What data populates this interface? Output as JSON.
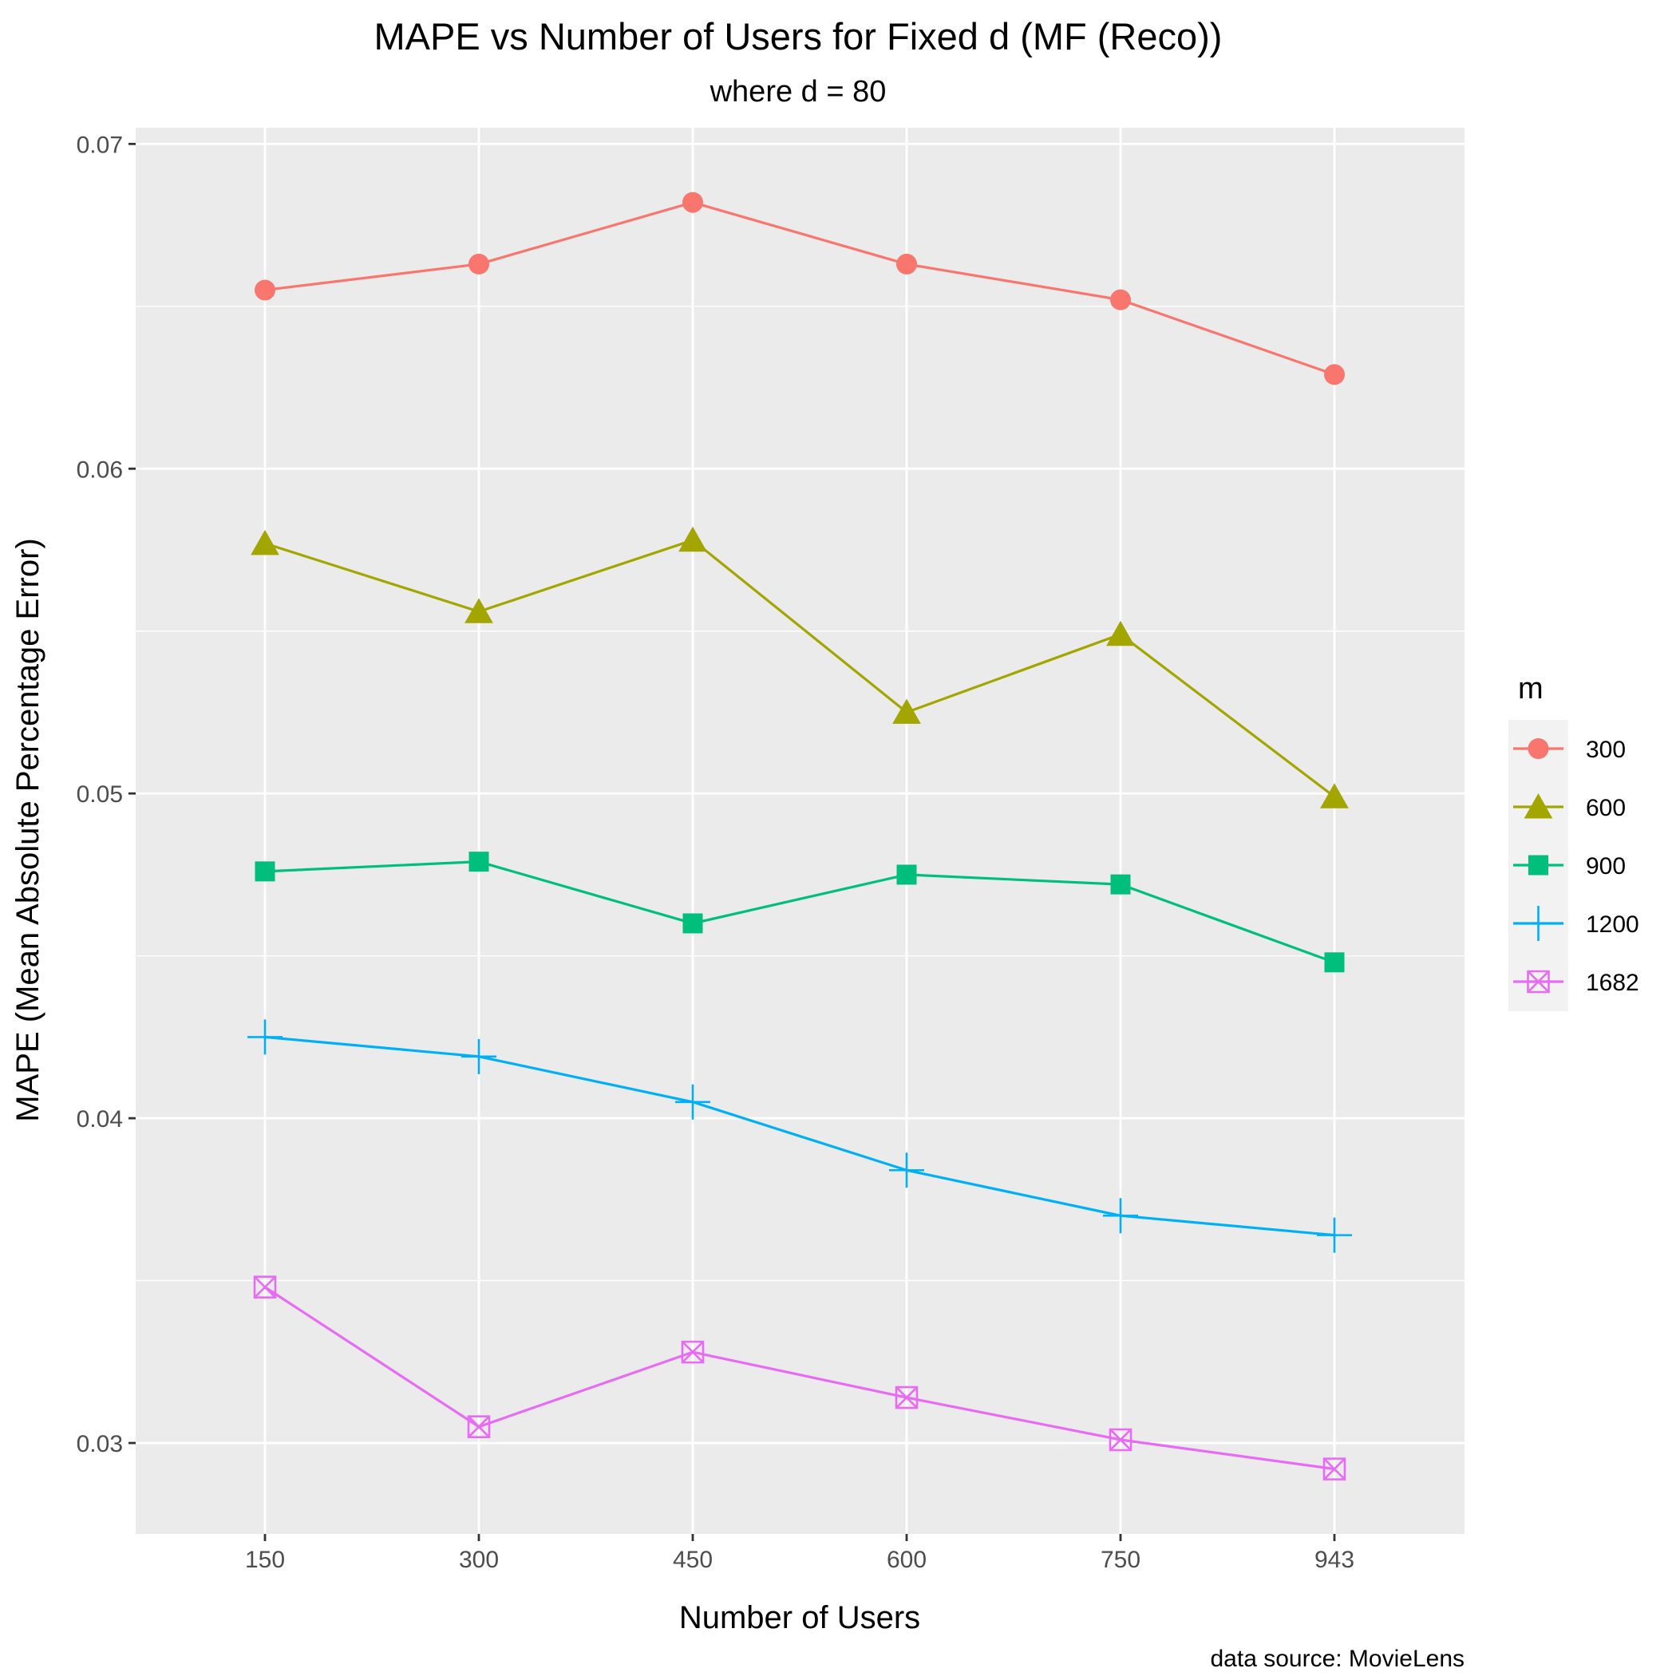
{
  "chart_data": {
    "type": "line",
    "title": "MAPE vs Number of Users for Fixed d (MF (Reco))",
    "subtitle": "where d = 80",
    "xlabel": "Number of Users",
    "ylabel": "MAPE (Mean Absolute Percentage Error)",
    "caption": "data source: MovieLens",
    "categories": [
      "150",
      "300",
      "450",
      "600",
      "750",
      "943"
    ],
    "y_ticks": [
      "0.03",
      "0.04",
      "0.05",
      "0.06",
      "0.07"
    ],
    "y_tick_values": [
      0.03,
      0.04,
      0.05,
      0.06,
      0.07
    ],
    "ylim": [
      0.0272,
      0.0705
    ],
    "grid": true,
    "legend": {
      "title": "m",
      "position": "right"
    },
    "series": [
      {
        "name": "300",
        "shape": "circle",
        "color": "#F8766D",
        "values": [
          0.0655,
          0.0663,
          0.0682,
          0.0663,
          0.0652,
          0.0629
        ]
      },
      {
        "name": "600",
        "shape": "triangle",
        "color": "#A3A500",
        "values": [
          0.0577,
          0.0556,
          0.0578,
          0.0525,
          0.0549,
          0.0499
        ]
      },
      {
        "name": "900",
        "shape": "square",
        "color": "#00BF7D",
        "values": [
          0.0476,
          0.0479,
          0.046,
          0.0475,
          0.0472,
          0.0448
        ]
      },
      {
        "name": "1200",
        "shape": "plus",
        "color": "#00B0F6",
        "values": [
          0.0425,
          0.0419,
          0.0405,
          0.0384,
          0.037,
          0.0364
        ]
      },
      {
        "name": "1682",
        "shape": "boxcross",
        "color": "#E76BF3",
        "values": [
          0.0348,
          0.0305,
          0.0328,
          0.0314,
          0.0301,
          0.0292
        ]
      }
    ]
  }
}
